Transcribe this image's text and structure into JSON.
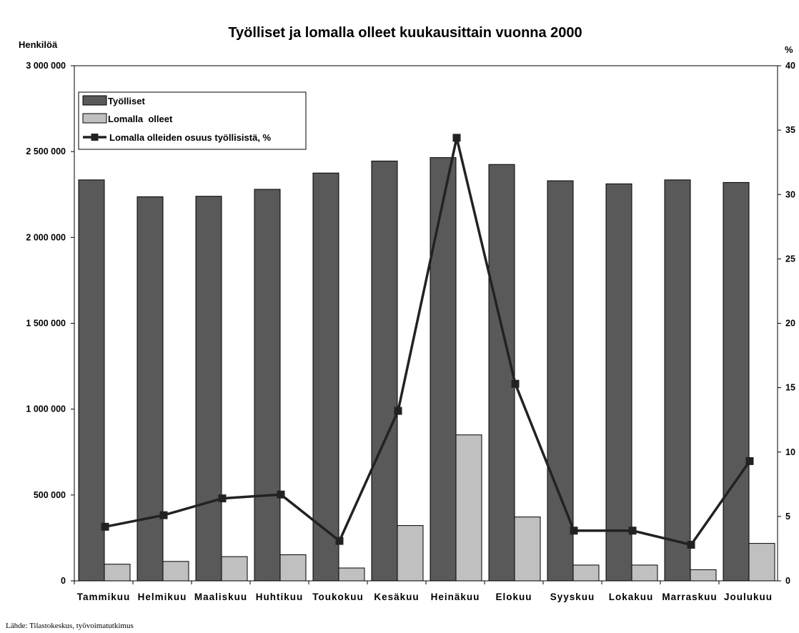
{
  "chart_data": {
    "type": "bar",
    "title": "Työlliset ja lomalla olleet kuukausittain vuonna 2000",
    "ylabel_left": "Henkilöä",
    "ylabel_right": "%",
    "categories": [
      "Tammikuu",
      "Helmikuu",
      "Maaliskuu",
      "Huhtikuu",
      "Toukokuu",
      "Kesäkuu",
      "Heinäkuu",
      "Elokuu",
      "Syyskuu",
      "Lokakuu",
      "Marraskuu",
      "Joulukuu"
    ],
    "series": [
      {
        "name": "Työlliset",
        "kind": "bar",
        "axis": "left",
        "color": "#595959",
        "values": [
          2335000,
          2237000,
          2240000,
          2280000,
          2375000,
          2445000,
          2465000,
          2425000,
          2330000,
          2312000,
          2335000,
          2320000
        ]
      },
      {
        "name": "Lomalla  olleet",
        "kind": "bar",
        "axis": "left",
        "color": "#c0c0c0",
        "values": [
          97000,
          113000,
          141000,
          152000,
          75000,
          322000,
          850000,
          372000,
          92000,
          92000,
          65000,
          218000
        ]
      },
      {
        "name": "Lomalla olleiden osuus työllisistä, %",
        "kind": "line",
        "axis": "right",
        "color": "#222222",
        "values": [
          4.2,
          5.1,
          6.4,
          6.7,
          3.1,
          13.2,
          34.4,
          15.3,
          3.9,
          3.9,
          2.8,
          9.3
        ]
      }
    ],
    "ylim_left": [
      0,
      3000000
    ],
    "ylim_right": [
      0,
      40
    ],
    "yticks_left": [
      0,
      500000,
      1000000,
      1500000,
      2000000,
      2500000,
      3000000
    ],
    "ytick_labels_left": [
      "0",
      "500 000",
      "1 000 000",
      "1 500 000",
      "2 000 000",
      "2 500 000",
      "3 000 000"
    ],
    "yticks_right": [
      0,
      5,
      10,
      15,
      20,
      25,
      30,
      35,
      40
    ],
    "ytick_labels_right": [
      "0",
      "5",
      "10",
      "15",
      "20",
      "25",
      "30",
      "35",
      "40"
    ],
    "grid": false,
    "legend_position": "top-left"
  },
  "source_note": "Lähde: Tilastokeskus, työvoimatutkimus"
}
